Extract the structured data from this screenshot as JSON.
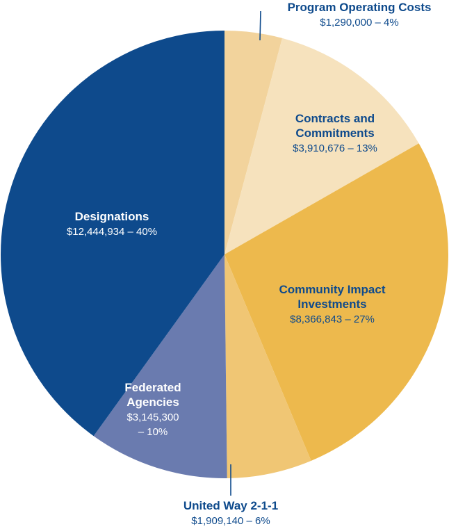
{
  "chart_data": {
    "type": "pie",
    "title": "",
    "slices": [
      {
        "name_lines": [
          "Program Operating Costs"
        ],
        "value": 1290000,
        "percent": 4,
        "value_lines": [
          "$1,290,000 – 4%"
        ],
        "color": "#F2D39C",
        "text_color": "#0E4A8C",
        "value_color": "#0E4A8C"
      },
      {
        "name_lines": [
          "Contracts and",
          "Commitments"
        ],
        "value": 3910676,
        "percent": 13,
        "value_lines": [
          "$3,910,676 – 13%"
        ],
        "color": "#F6E2BD",
        "text_color": "#0E4A8C",
        "value_color": "#0E4A8C"
      },
      {
        "name_lines": [
          "Community Impact",
          "Investments"
        ],
        "value": 8366843,
        "percent": 27,
        "value_lines": [
          "$8,366,843 – 27%"
        ],
        "color": "#EDB94D",
        "text_color": "#0E4A8C",
        "value_color": "#0E4A8C"
      },
      {
        "name_lines": [
          "United Way 2-1-1"
        ],
        "value": 1909140,
        "percent": 6,
        "value_lines": [
          "$1,909,140 – 6%"
        ],
        "color": "#F0C674",
        "text_color": "#0E4A8C",
        "value_color": "#0E4A8C"
      },
      {
        "name_lines": [
          "Federated",
          "Agencies"
        ],
        "value": 3145300,
        "percent": 10,
        "value_lines": [
          "$3,145,300",
          "– 10%"
        ],
        "color": "#6A7BAF",
        "text_color": "#FFFFFF",
        "value_color": "#FFFFFF"
      },
      {
        "name_lines": [
          "Designations"
        ],
        "value": 12444934,
        "percent": 40,
        "value_lines": [
          "$12,444,934 – 40%"
        ],
        "color": "#0E4A8C",
        "text_color": "#FFFFFF",
        "value_color": "#FFFFFF"
      }
    ]
  }
}
